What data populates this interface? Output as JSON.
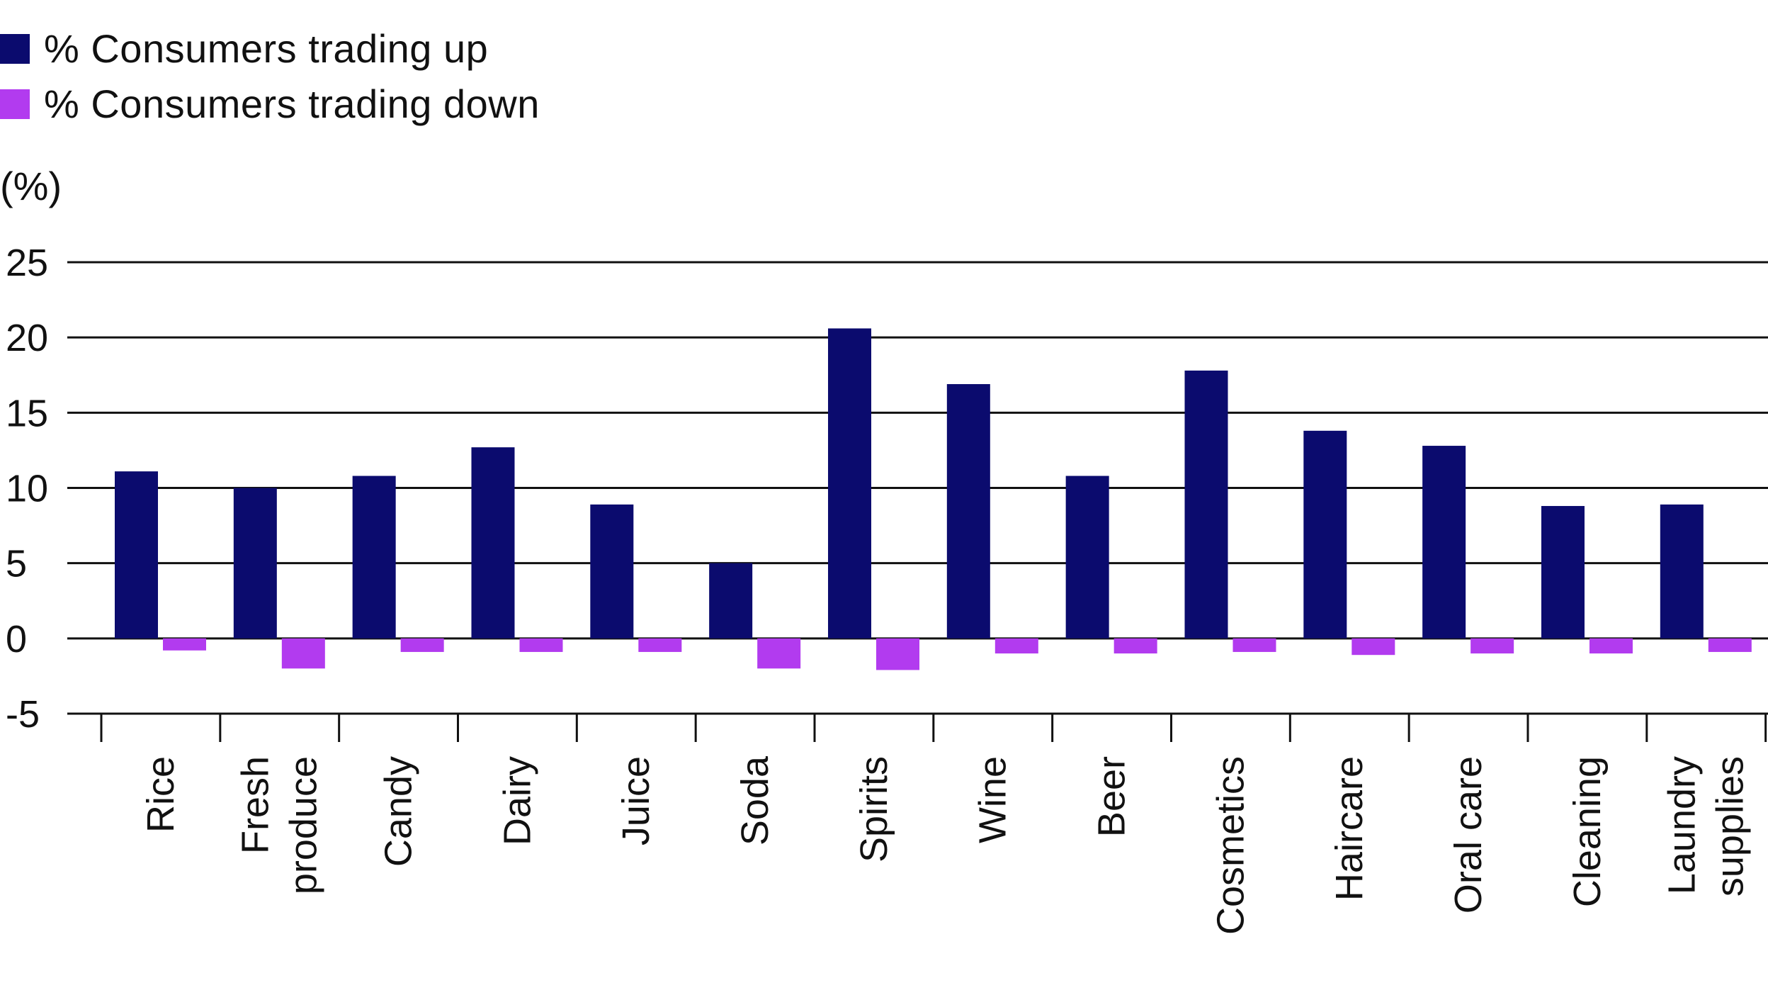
{
  "chart_data": {
    "type": "bar",
    "ylabel": "(%)",
    "ylim": [
      -5,
      25
    ],
    "yticks": [
      "25",
      "20",
      "15",
      "10",
      "5",
      "0",
      "-5"
    ],
    "grid": true,
    "legend_position": "top-left",
    "categories": [
      [
        "Rice"
      ],
      [
        "Fresh",
        "produce"
      ],
      [
        "Candy"
      ],
      [
        "Dairy"
      ],
      [
        "Juice"
      ],
      [
        "Soda"
      ],
      [
        "Spirits"
      ],
      [
        "Wine"
      ],
      [
        "Beer"
      ],
      [
        "Cosmetics"
      ],
      [
        "Haircare"
      ],
      [
        "Oral care"
      ],
      [
        "Cleaning"
      ],
      [
        "Laundry",
        "supplies"
      ]
    ],
    "series": [
      {
        "name": "% Consumers trading up",
        "color": "#0b0b6e",
        "values": [
          11.1,
          10.0,
          10.8,
          12.7,
          8.9,
          5.0,
          20.6,
          16.9,
          10.8,
          17.8,
          13.8,
          12.8,
          8.8,
          8.9
        ]
      },
      {
        "name": "% Consumers trading down",
        "color": "#b23bef",
        "values": [
          -0.8,
          -2.0,
          -0.9,
          -0.9,
          -0.9,
          -2.0,
          -2.1,
          -1.0,
          -1.0,
          -0.9,
          -1.1,
          -1.0,
          -1.0,
          -0.9
        ]
      }
    ]
  }
}
